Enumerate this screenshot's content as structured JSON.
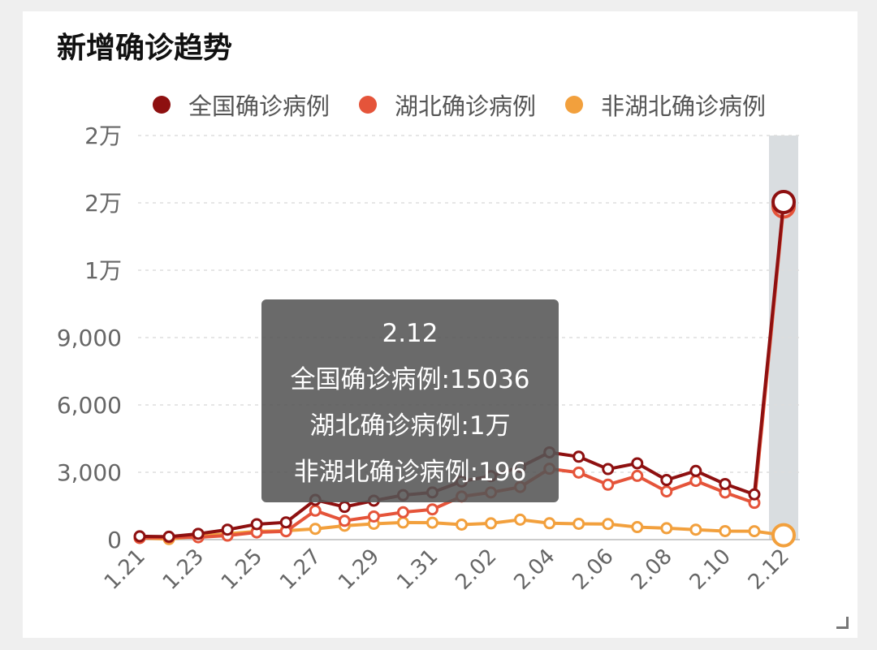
{
  "chart_data": {
    "type": "line",
    "title": "新增确诊趋势",
    "x": [
      "1.21",
      "1.22",
      "1.23",
      "1.24",
      "1.25",
      "1.26",
      "1.27",
      "1.28",
      "1.29",
      "1.30",
      "1.31",
      "2.01",
      "2.02",
      "2.03",
      "2.04",
      "2.05",
      "2.06",
      "2.07",
      "2.08",
      "2.09",
      "2.10",
      "2.11",
      "2.12"
    ],
    "x_tick_labels": [
      "1.21",
      "1.23",
      "1.25",
      "1.27",
      "1.29",
      "1.31",
      "2.02",
      "2.04",
      "2.06",
      "2.08",
      "2.10",
      "2.12"
    ],
    "y_tick_values": [
      0,
      3000,
      6000,
      9000,
      12000,
      15000,
      18000
    ],
    "y_tick_labels": [
      "0",
      "3,000",
      "6,000",
      "9,000",
      "1万",
      "2万",
      "2万"
    ],
    "ylim": [
      0,
      18000
    ],
    "grid": true,
    "legend_position": "top",
    "highlight": "2.12",
    "series": [
      {
        "name": "全国确诊病例",
        "color": "#8e1010",
        "values": [
          149,
          131,
          259,
          444,
          688,
          769,
          1771,
          1459,
          1737,
          1982,
          2102,
          2590,
          2829,
          3235,
          3887,
          3694,
          3143,
          3399,
          2656,
          3062,
          2478,
          2015,
          15036
        ]
      },
      {
        "name": "湖北确诊病例",
        "color": "#e5543a",
        "values": [
          72,
          105,
          105,
          180,
          323,
          371,
          1291,
          840,
          1032,
          1220,
          1347,
          1921,
          2103,
          2345,
          3156,
          2987,
          2447,
          2841,
          2147,
          2618,
          2097,
          1638,
          14840
        ]
      },
      {
        "name": "非湖北确诊病例",
        "color": "#f2a03d",
        "values": [
          77,
          26,
          154,
          264,
          365,
          398,
          480,
          619,
          705,
          762,
          755,
          669,
          726,
          890,
          731,
          707,
          696,
          558,
          509,
          444,
          381,
          377,
          196
        ]
      }
    ]
  },
  "tooltip": {
    "title": "2.12",
    "lines": [
      "全国确诊病例:15036",
      "湖北确诊病例:1万",
      "非湖北确诊病例:196"
    ]
  }
}
